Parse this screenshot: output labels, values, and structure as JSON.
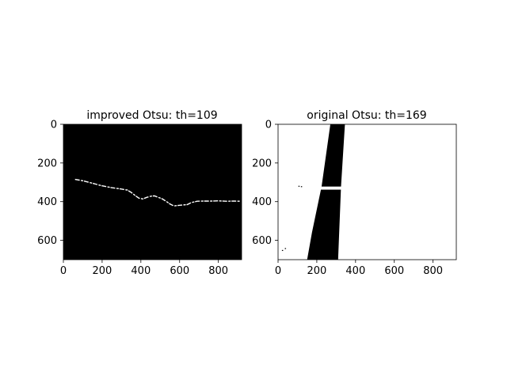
{
  "figure": {
    "background": "#ffffff"
  },
  "chart_data": [
    {
      "type": "heatmap",
      "title": "improved Otsu: th=109",
      "colormap": "binary (0=black, 255=white)",
      "image_size": {
        "width": 920,
        "height": 700
      },
      "xlim": [
        0,
        920
      ],
      "ylim": [
        700,
        0
      ],
      "x_ticks": [
        0,
        200,
        400,
        600,
        800
      ],
      "y_ticks": [
        0,
        200,
        400,
        600
      ],
      "background_value": 0,
      "foreground_value": 255,
      "description_data": {
        "crack_path": [
          [
            60,
            285
          ],
          [
            100,
            292
          ],
          [
            150,
            305
          ],
          [
            200,
            318
          ],
          [
            250,
            328
          ],
          [
            300,
            335
          ],
          [
            330,
            340
          ],
          [
            350,
            352
          ],
          [
            370,
            368
          ],
          [
            390,
            382
          ],
          [
            410,
            386
          ],
          [
            430,
            378
          ],
          [
            450,
            372
          ],
          [
            470,
            370
          ],
          [
            490,
            378
          ],
          [
            510,
            385
          ],
          [
            530,
            398
          ],
          [
            550,
            412
          ],
          [
            570,
            422
          ],
          [
            590,
            420
          ],
          [
            610,
            418
          ],
          [
            640,
            415
          ],
          [
            660,
            405
          ],
          [
            690,
            398
          ],
          [
            720,
            397
          ],
          [
            760,
            397
          ],
          [
            800,
            396
          ],
          [
            840,
            398
          ],
          [
            880,
            397
          ],
          [
            910,
            398
          ]
        ]
      }
    },
    {
      "type": "heatmap",
      "title": "original Otsu: th=169",
      "colormap": "binary (0=black, 255=white)",
      "image_size": {
        "width": 920,
        "height": 700
      },
      "xlim": [
        0,
        920
      ],
      "ylim": [
        700,
        0
      ],
      "x_ticks": [
        0,
        200,
        400,
        600,
        800
      ],
      "y_ticks": [
        0,
        200,
        400,
        600
      ],
      "background_value": 255,
      "foreground_value": 0,
      "description_data": {
        "band_polygon": [
          [
            270,
            0
          ],
          [
            345,
            0
          ],
          [
            325,
            320
          ],
          [
            310,
            700
          ],
          [
            150,
            700
          ],
          [
            175,
            560
          ],
          [
            225,
            320
          ]
        ],
        "crack_gap": {
          "y_center": 330,
          "half_height": 8
        },
        "specks": [
          [
            105,
            318
          ],
          [
            118,
            320
          ],
          [
            20,
            650
          ],
          [
            35,
            640
          ]
        ]
      }
    }
  ]
}
